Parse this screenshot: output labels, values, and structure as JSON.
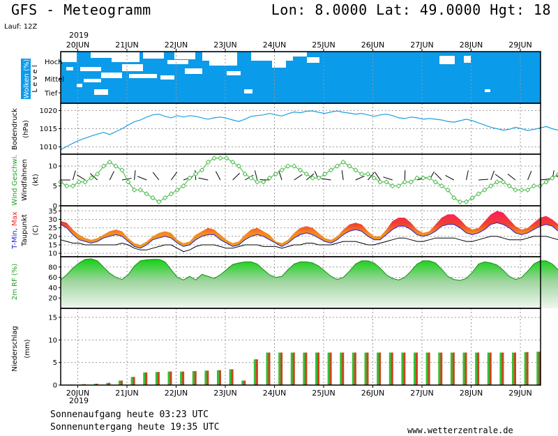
{
  "header": {
    "title": "GFS - Meteogramm",
    "coords": "Lon: 8.0000  Lat: 49.0000  Hgt: 18",
    "run": "Lauf: 12Z",
    "year_top": "2019",
    "year_bottom": "2019"
  },
  "footer": {
    "sunrise": "Sonnenaufgang heute 03:23 UTC",
    "sunset": "Sonnenuntergang heute 19:35 UTC",
    "source": "www.wetterzentrale.de"
  },
  "colors": {
    "cloud_bg": "#0a9bea",
    "pressure_line": "#1aa0e0",
    "wind_line": "#3cb43c",
    "tmin": "#2222cc",
    "tmax": "#ee2222",
    "rf_green": "#22c022",
    "precip_green": "#33c033",
    "precip_red": "#cc4422"
  },
  "chart_data": {
    "type": "meteogram",
    "dates": [
      "20JUN",
      "21JUN",
      "22JUN",
      "23JUN",
      "24JUN",
      "25JUN",
      "26JUN",
      "27JUN",
      "28JUN",
      "29JUN"
    ],
    "time_steps_hours": 3,
    "time_start_offset_days": -0.35,
    "panels": [
      {
        "id": "clouds",
        "label_lines": [
          "Wolken (%)",
          "L e v e l"
        ],
        "levels": [
          "Hoch",
          "Mittel",
          "Tief"
        ],
        "type": "heatmap"
      },
      {
        "id": "pressure",
        "label_lines": [
          "Bodendruck",
          "(hPa)"
        ],
        "yticks": [
          1010,
          1015,
          1020
        ],
        "ylim": [
          1008,
          1022
        ],
        "type": "line",
        "values": [
          1009.2,
          1010.1,
          1011.0,
          1011.8,
          1012.4,
          1013.0,
          1013.5,
          1014.0,
          1013.4,
          1014.2,
          1015.0,
          1016.0,
          1016.9,
          1017.4,
          1018.2,
          1018.8,
          1019.0,
          1018.4,
          1018.0,
          1018.6,
          1018.2,
          1018.6,
          1018.4,
          1018.0,
          1017.6,
          1018.0,
          1018.2,
          1017.9,
          1017.4,
          1017.0,
          1017.6,
          1018.4,
          1018.6,
          1018.8,
          1019.2,
          1018.8,
          1018.5,
          1019.1,
          1019.6,
          1019.4,
          1019.8,
          1019.9,
          1019.5,
          1019.2,
          1019.6,
          1019.9,
          1019.5,
          1019.3,
          1019.0,
          1019.2,
          1018.8,
          1018.4,
          1018.8,
          1019.0,
          1018.6,
          1018.0,
          1017.8,
          1018.2,
          1018.0,
          1017.6,
          1017.8,
          1017.6,
          1017.4,
          1017.0,
          1016.8,
          1017.2,
          1017.6,
          1017.2,
          1016.6,
          1016.0,
          1015.4,
          1015.0,
          1014.6,
          1014.8,
          1015.4,
          1015.0,
          1014.5,
          1014.8,
          1015.2,
          1015.6,
          1015.0,
          1014.6,
          1014.4,
          1014.9,
          1015.4,
          1015.8,
          1015.6,
          1015.2,
          1015.8,
          1016.0,
          1015.6,
          1015.2
        ]
      },
      {
        "id": "wind",
        "label_lines": [
          "Wind Geschwi.",
          "Windfahnen",
          "(kt)"
        ],
        "yticks": [
          0,
          5,
          10
        ],
        "ylim": [
          0,
          13
        ],
        "type": "line",
        "values": [
          6,
          5,
          5,
          6,
          6,
          7,
          8,
          10,
          11,
          10,
          9,
          6,
          4,
          4,
          3,
          2,
          1,
          2,
          3,
          4,
          5,
          7,
          8,
          9,
          11,
          12,
          12,
          12,
          11,
          10,
          8,
          7,
          6,
          6,
          7,
          8,
          9,
          10,
          10,
          9,
          8,
          7,
          7,
          8,
          9,
          10,
          11,
          10,
          9,
          8,
          8,
          7,
          6,
          6,
          5,
          5,
          6,
          6,
          7,
          7,
          7,
          6,
          5,
          4,
          2,
          1,
          1,
          2,
          3,
          4,
          5,
          6,
          6,
          5,
          4,
          4,
          4,
          5,
          5,
          6,
          7,
          8,
          9,
          9,
          8,
          7,
          6,
          5,
          4,
          4,
          5,
          6
        ]
      },
      {
        "id": "temperature",
        "label_lines": [
          "T-Min, Max",
          "Taupunkt",
          "(C)"
        ],
        "yticks": [
          10,
          15,
          20,
          25,
          30,
          35
        ],
        "ylim": [
          8,
          38
        ],
        "type": "area",
        "series": [
          {
            "name": "T-Max",
            "values": [
              29,
              28,
              24,
              21,
              19,
              18,
              19,
              21,
              23,
              24,
              23,
              19,
              16,
              15,
              17,
              20,
              22,
              23,
              22,
              18,
              16,
              17,
              21,
              23,
              25,
              24,
              21,
              18,
              16,
              17,
              21,
              24,
              25,
              23,
              21,
              17,
              16,
              18,
              22,
              25,
              26,
              25,
              22,
              19,
              18,
              20,
              24,
              27,
              28,
              27,
              23,
              20,
              20,
              24,
              29,
              31,
              31,
              28,
              24,
              22,
              23,
              27,
              31,
              33,
              33,
              30,
              26,
              24,
              25,
              29,
              33,
              35,
              34,
              30,
              26,
              24,
              25,
              28,
              31,
              32,
              30,
              27,
              23,
              22,
              24,
              27,
              29,
              28,
              25,
              22,
              24,
              28
            ]
          },
          {
            "name": "T-Min",
            "values": [
              27,
              25,
              21,
              18,
              17,
              16,
              17,
              19,
              20,
              21,
              20,
              17,
              14,
              13,
              15,
              18,
              19,
              20,
              19,
              16,
              14,
              15,
              18,
              20,
              21,
              21,
              18,
              16,
              14,
              15,
              18,
              20,
              21,
              20,
              18,
              16,
              14,
              16,
              19,
              21,
              22,
              21,
              19,
              17,
              16,
              18,
              21,
              23,
              24,
              23,
              20,
              18,
              18,
              21,
              24,
              26,
              26,
              24,
              21,
              20,
              21,
              23,
              26,
              27,
              27,
              25,
              22,
              21,
              22,
              24,
              27,
              28,
              27,
              25,
              22,
              21,
              22,
              24,
              26,
              27,
              26,
              23,
              21,
              20,
              21,
              23,
              24,
              24,
              22,
              20,
              21,
              24
            ]
          },
          {
            "name": "Taupunkt",
            "values": [
              18,
              17,
              16,
              16,
              15,
              15,
              15,
              15,
              15,
              15,
              16,
              15,
              13,
              12,
              12,
              13,
              14,
              15,
              15,
              13,
              11,
              12,
              14,
              15,
              15,
              15,
              14,
              13,
              13,
              14,
              15,
              15,
              15,
              14,
              14,
              14,
              13,
              14,
              15,
              15,
              16,
              16,
              15,
              15,
              15,
              16,
              17,
              17,
              17,
              16,
              15,
              15,
              16,
              17,
              18,
              19,
              19,
              18,
              17,
              17,
              18,
              19,
              19,
              19,
              19,
              18,
              17,
              17,
              18,
              19,
              20,
              20,
              19,
              18,
              18,
              18,
              19,
              20,
              20,
              20,
              19,
              18,
              18,
              18,
              19,
              20,
              20,
              20,
              19,
              19,
              19,
              20
            ]
          }
        ]
      },
      {
        "id": "rh",
        "label_lines": [
          "2m RF (%)"
        ],
        "yticks": [
          20,
          40,
          60,
          80
        ],
        "ylim": [
          0,
          100
        ],
        "type": "area",
        "values": [
          55,
          65,
          78,
          88,
          95,
          96,
          92,
          80,
          68,
          60,
          56,
          65,
          82,
          92,
          94,
          95,
          95,
          90,
          75,
          60,
          55,
          62,
          55,
          66,
          62,
          58,
          65,
          75,
          85,
          88,
          90,
          90,
          86,
          75,
          65,
          60,
          62,
          75,
          86,
          90,
          90,
          88,
          82,
          72,
          62,
          56,
          60,
          72,
          86,
          92,
          92,
          88,
          78,
          65,
          58,
          55,
          60,
          72,
          86,
          92,
          92,
          88,
          76,
          62,
          56,
          54,
          58,
          70,
          86,
          90,
          88,
          84,
          74,
          62,
          56,
          60,
          72,
          86,
          92,
          92,
          86,
          74,
          62,
          58,
          62,
          74,
          84,
          86,
          84,
          78,
          66,
          56
        ]
      },
      {
        "id": "precip",
        "label_lines": [
          "Niederschlag",
          "(mm)"
        ],
        "yticks": [
          0,
          5,
          10,
          15
        ],
        "ylim": [
          0,
          17
        ],
        "type": "bar",
        "values": [
          0.1,
          0.2,
          0.3,
          0.5,
          1.0,
          1.8,
          2.8,
          2.9,
          3.0,
          3.0,
          3.1,
          3.2,
          3.3,
          3.5,
          1.0,
          5.7,
          7.2,
          7.2,
          7.2,
          7.2,
          7.2,
          7.2,
          7.2,
          7.2,
          7.2,
          7.2,
          7.2,
          7.2,
          7.2,
          7.2,
          7.2,
          7.2,
          7.2,
          7.2,
          7.2,
          7.2,
          7.2,
          7.3,
          7.4
        ]
      }
    ]
  }
}
